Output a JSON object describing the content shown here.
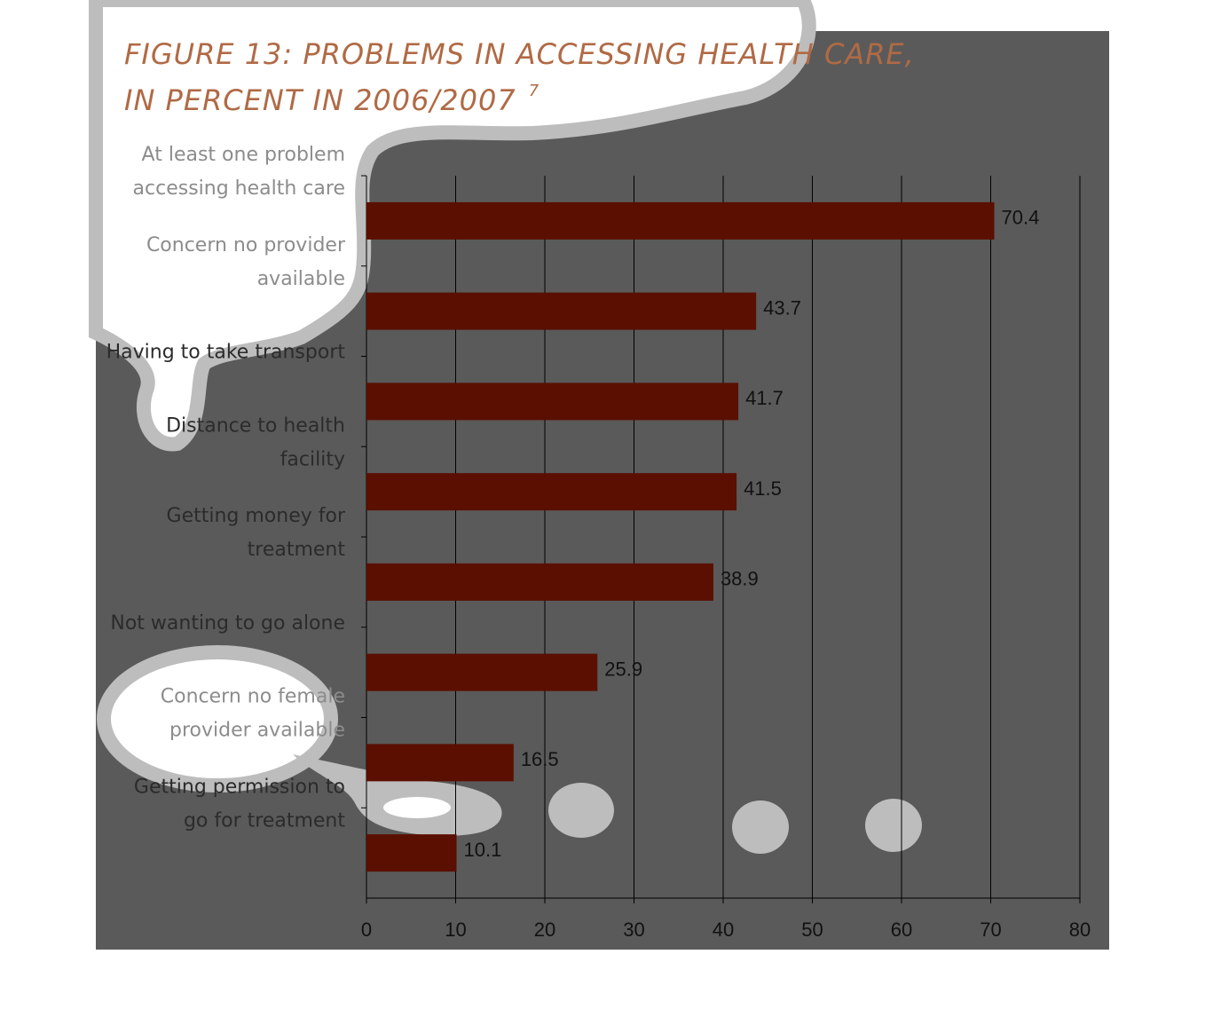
{
  "chart_data": {
    "type": "bar",
    "orientation": "horizontal",
    "title": [
      "FIGURE 13:  PROBLEMS IN ACCESSING HEALTH CARE,",
      "IN PERCENT  IN 2006/2007"
    ],
    "title_footnote": "7",
    "categories": [
      [
        "At least one problem",
        "accessing health care"
      ],
      [
        "Concern no provider",
        "available"
      ],
      [
        "Having to take transport"
      ],
      [
        "Distance to health",
        "facility"
      ],
      [
        "Getting money for",
        "treatment"
      ],
      [
        "Not wanting to go alone"
      ],
      [
        "Concern no female",
        "provider available"
      ],
      [
        "Getting permission to",
        "go for treatment"
      ]
    ],
    "values": [
      70.4,
      43.7,
      41.7,
      41.5,
      38.9,
      25.9,
      16.5,
      10.1
    ],
    "color": "#5a0f00",
    "xlim": [
      0,
      80
    ],
    "xticks": [
      0,
      10,
      20,
      30,
      40,
      50,
      60,
      70,
      80
    ],
    "grid": true
  }
}
